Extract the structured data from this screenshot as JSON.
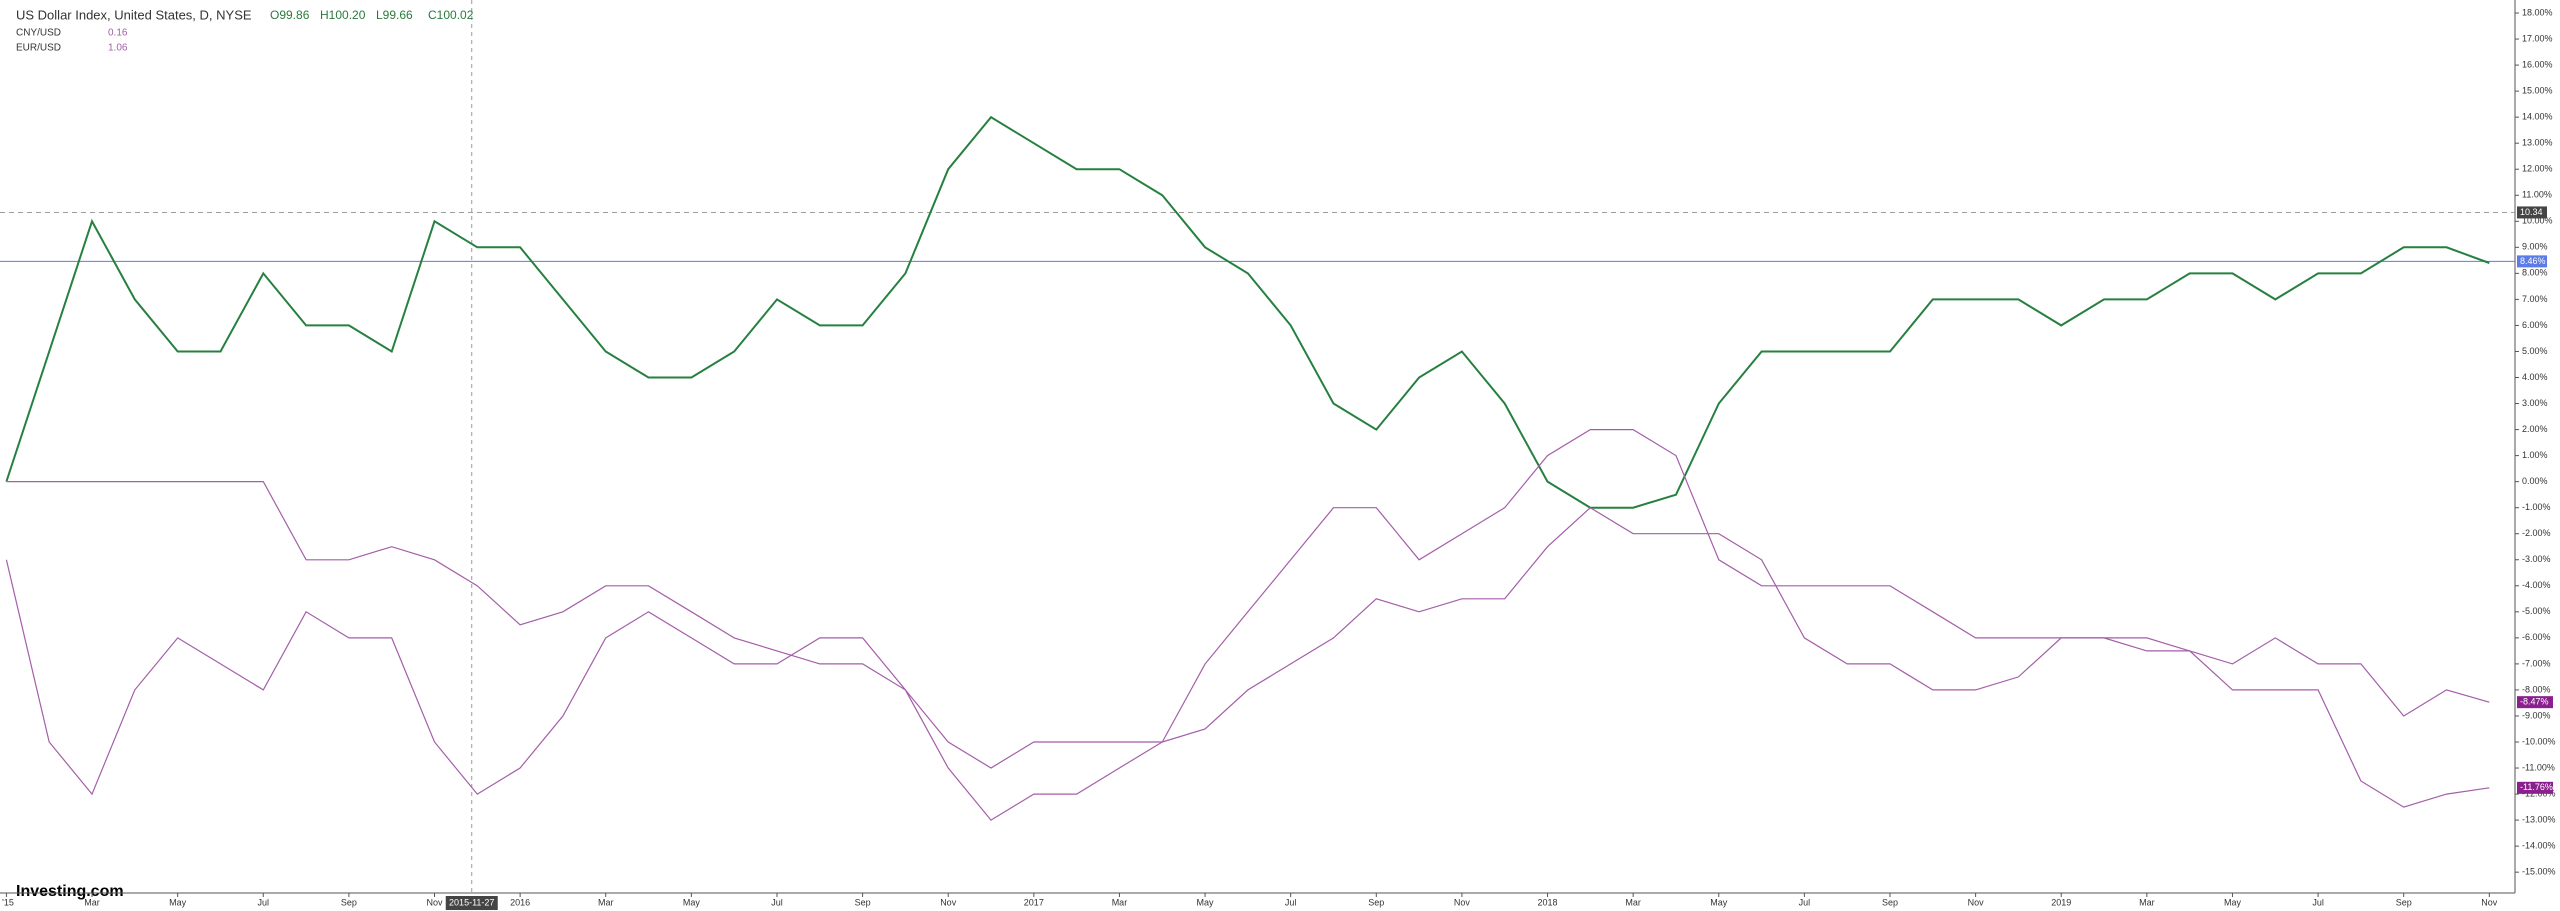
{
  "chart_data": {
    "type": "line",
    "title": "US Dollar Index, United States, D, NYSE",
    "ohlc": [
      "O99.86",
      "H100.20",
      "L99.66",
      "C100.02"
    ],
    "x": [
      0,
      1,
      2,
      3,
      4,
      5,
      6,
      7,
      8,
      9,
      10,
      11,
      12,
      13,
      14,
      15,
      16,
      17,
      18,
      19,
      20,
      21,
      22,
      23,
      24,
      25,
      26,
      27,
      28,
      29,
      30,
      31,
      32,
      33,
      34,
      35,
      36,
      37,
      38,
      39,
      40,
      41,
      42,
      43,
      44,
      45,
      46,
      47,
      48,
      49,
      50,
      51,
      52,
      53,
      54,
      55,
      56,
      57,
      58
    ],
    "series": [
      {
        "name": "US Dollar Index",
        "color": "#26803f",
        "values": [
          0,
          5,
          10,
          7,
          5,
          5,
          8,
          6,
          6,
          5,
          10,
          9,
          9,
          7,
          5,
          4,
          4,
          5,
          7,
          6,
          6,
          8,
          12,
          14,
          13,
          12,
          12,
          11,
          9,
          8,
          6,
          3,
          2,
          4,
          5,
          3,
          0,
          -1,
          -1,
          -0.5,
          3,
          5,
          5,
          5,
          5,
          7,
          7,
          7,
          6,
          7,
          7,
          8,
          8,
          7,
          8,
          8,
          9,
          9,
          8.4
        ]
      },
      {
        "name": "CNY/USD",
        "legend_value": "0.16",
        "color": "#a45ea8",
        "end_label": "-11.76%",
        "values": [
          0,
          0,
          0,
          0,
          0,
          0,
          0,
          -3,
          -3,
          -2.5,
          -3,
          -4,
          -5.5,
          -5,
          -4,
          -4,
          -5,
          -6,
          -6.5,
          -7,
          -7,
          -8,
          -10,
          -11,
          -10,
          -10,
          -10,
          -10,
          -9.5,
          -8,
          -7,
          -6,
          -4.5,
          -5,
          -4.5,
          -4.5,
          -2.5,
          -1,
          -2,
          -2,
          -2,
          -3,
          -6,
          -7,
          -7,
          -8,
          -8,
          -7.5,
          -6,
          -6,
          -6.5,
          -6.5,
          -8,
          -8,
          -8,
          -11.5,
          -12.5,
          -12,
          -11.76
        ]
      },
      {
        "name": "EUR/USD",
        "legend_value": "1.06",
        "color": "#a45ea8",
        "end_label": "-8.47%",
        "values": [
          -3,
          -10,
          -12,
          -8,
          -6,
          -7,
          -8,
          -5,
          -6,
          -6,
          -10,
          -12,
          -11,
          -9,
          -6,
          -5,
          -6,
          -7,
          -7,
          -6,
          -6,
          -8,
          -11,
          -13,
          -12,
          -12,
          -11,
          -10,
          -7,
          -5,
          -3,
          -1,
          -1,
          -3,
          -2,
          -1,
          1,
          2,
          2,
          1,
          -3,
          -4,
          -4,
          -4,
          -4,
          -5,
          -6,
          -6,
          -6,
          -6,
          -6,
          -6.5,
          -7,
          -6,
          -7,
          -7,
          -9,
          -8,
          -8.47
        ]
      }
    ],
    "xlim": [
      -0.15,
      58.6
    ],
    "xticks": [
      {
        "value": 0,
        "label": "'15"
      },
      {
        "value": 2,
        "label": "Mar"
      },
      {
        "value": 4,
        "label": "May"
      },
      {
        "value": 6,
        "label": "Jul"
      },
      {
        "value": 8,
        "label": "Sep"
      },
      {
        "value": 10,
        "label": "Nov"
      },
      {
        "value": 12,
        "label": "2016"
      },
      {
        "value": 14,
        "label": "Mar"
      },
      {
        "value": 16,
        "label": "May"
      },
      {
        "value": 18,
        "label": "Jul"
      },
      {
        "value": 20,
        "label": "Sep"
      },
      {
        "value": 22,
        "label": "Nov"
      },
      {
        "value": 24,
        "label": "2017"
      },
      {
        "value": 26,
        "label": "Mar"
      },
      {
        "value": 28,
        "label": "May"
      },
      {
        "value": 30,
        "label": "Jul"
      },
      {
        "value": 32,
        "label": "Sep"
      },
      {
        "value": 34,
        "label": "Nov"
      },
      {
        "value": 36,
        "label": "2018"
      },
      {
        "value": 38,
        "label": "Mar"
      },
      {
        "value": 40,
        "label": "May"
      },
      {
        "value": 42,
        "label": "Jul"
      },
      {
        "value": 44,
        "label": "Sep"
      },
      {
        "value": 46,
        "label": "Nov"
      },
      {
        "value": 48,
        "label": "2019"
      },
      {
        "value": 50,
        "label": "Mar"
      },
      {
        "value": 52,
        "label": "May"
      },
      {
        "value": 54,
        "label": "Jul"
      },
      {
        "value": 56,
        "label": "Sep"
      },
      {
        "value": 58,
        "label": "Nov"
      }
    ],
    "ylim": [
      -15.8,
      18.5
    ],
    "yticks": [
      {
        "value": 18,
        "label": "18.00%"
      },
      {
        "value": 17,
        "label": "17.00%"
      },
      {
        "value": 16,
        "label": "16.00%"
      },
      {
        "value": 15,
        "label": "15.00%"
      },
      {
        "value": 14,
        "label": "14.00%"
      },
      {
        "value": 13,
        "label": "13.00%"
      },
      {
        "value": 12,
        "label": "12.00%"
      },
      {
        "value": 11,
        "label": "11.00%"
      },
      {
        "value": 10,
        "label": "10.00%"
      },
      {
        "value": 9,
        "label": "9.00%"
      },
      {
        "value": 8,
        "label": "8.00%"
      },
      {
        "value": 7,
        "label": "7.00%"
      },
      {
        "value": 6,
        "label": "6.00%"
      },
      {
        "value": 5,
        "label": "5.00%"
      },
      {
        "value": 4,
        "label": "4.00%"
      },
      {
        "value": 3,
        "label": "3.00%"
      },
      {
        "value": 2,
        "label": "2.00%"
      },
      {
        "value": 1,
        "label": "1.00%"
      },
      {
        "value": 0,
        "label": "0.00%"
      },
      {
        "value": -1,
        "label": "-1.00%"
      },
      {
        "value": -2,
        "label": "-2.00%"
      },
      {
        "value": -3,
        "label": "-3.00%"
      },
      {
        "value": -4,
        "label": "-4.00%"
      },
      {
        "value": -5,
        "label": "-5.00%"
      },
      {
        "value": -6,
        "label": "-6.00%"
      },
      {
        "value": -7,
        "label": "-7.00%"
      },
      {
        "value": -8,
        "label": "-8.00%"
      },
      {
        "value": -9,
        "label": "-9.00%"
      },
      {
        "value": -10,
        "label": "-10.00%"
      },
      {
        "value": -11,
        "label": "-11.00%"
      },
      {
        "value": -12,
        "label": "-12.00%"
      },
      {
        "value": -13,
        "label": "-13.00%"
      },
      {
        "value": -14,
        "label": "-14.00%"
      },
      {
        "value": -15,
        "label": "-15.00%"
      }
    ],
    "hlines": [
      {
        "value": 10.34,
        "label": "10.34",
        "color": "#9e9e9e",
        "dashed": true
      },
      {
        "value": 8.46,
        "label": "8.46%",
        "color": "#5b7be6",
        "dashed": false
      }
    ],
    "crosshair": {
      "x": 10.87,
      "label": "2015-11-27"
    },
    "logo": "Investing.com"
  }
}
